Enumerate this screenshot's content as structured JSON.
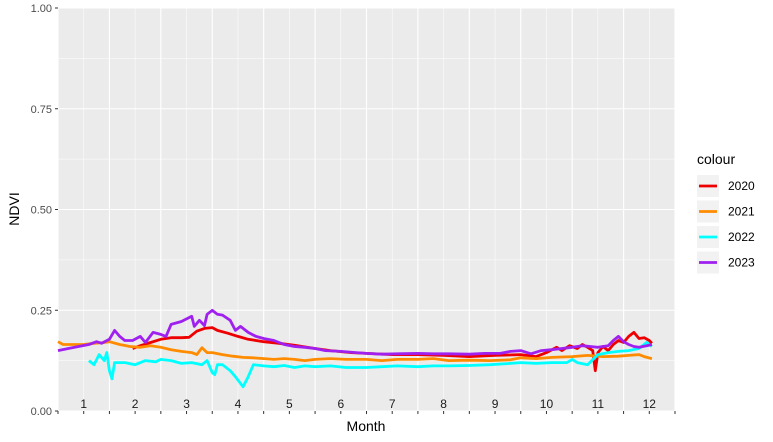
{
  "chart_data": {
    "type": "line",
    "title": "",
    "xlabel": "Month",
    "ylabel": "NDVI",
    "ylim": [
      0,
      1
    ],
    "y_ticks": [
      "0.00",
      "0.25",
      "0.50",
      "0.75",
      "1.00"
    ],
    "y_tick_values": [
      0,
      0.25,
      0.5,
      0.75,
      1.0
    ],
    "xlim": [
      1,
      13
    ],
    "month_labels": [
      "1",
      "2",
      "3",
      "4",
      "5",
      "6",
      "7",
      "8",
      "9",
      "10",
      "11",
      "12"
    ],
    "grid": true,
    "legend": {
      "title": "colour",
      "placement": "right"
    },
    "series": [
      {
        "name": "2020",
        "color": "#EE0000",
        "points": [
          [
            2.45,
            0.155
          ],
          [
            2.6,
            0.162
          ],
          [
            2.8,
            0.17
          ],
          [
            3.0,
            0.178
          ],
          [
            3.2,
            0.182
          ],
          [
            3.4,
            0.182
          ],
          [
            3.55,
            0.183
          ],
          [
            3.7,
            0.198
          ],
          [
            3.85,
            0.205
          ],
          [
            4.0,
            0.207
          ],
          [
            4.1,
            0.2
          ],
          [
            4.3,
            0.193
          ],
          [
            4.5,
            0.185
          ],
          [
            4.7,
            0.178
          ],
          [
            5.0,
            0.172
          ],
          [
            5.3,
            0.168
          ],
          [
            5.6,
            0.163
          ],
          [
            6.0,
            0.155
          ],
          [
            6.3,
            0.15
          ],
          [
            6.7,
            0.145
          ],
          [
            7.0,
            0.143
          ],
          [
            7.5,
            0.14
          ],
          [
            8.0,
            0.14
          ],
          [
            8.5,
            0.138
          ],
          [
            9.0,
            0.135
          ],
          [
            9.5,
            0.138
          ],
          [
            10.0,
            0.14
          ],
          [
            10.3,
            0.135
          ],
          [
            10.5,
            0.145
          ],
          [
            10.7,
            0.158
          ],
          [
            10.8,
            0.15
          ],
          [
            10.95,
            0.162
          ],
          [
            11.1,
            0.155
          ],
          [
            11.2,
            0.165
          ],
          [
            11.3,
            0.158
          ],
          [
            11.4,
            0.15
          ],
          [
            11.45,
            0.1
          ],
          [
            11.5,
            0.145
          ],
          [
            11.6,
            0.16
          ],
          [
            11.7,
            0.15
          ],
          [
            11.8,
            0.165
          ],
          [
            11.9,
            0.175
          ],
          [
            12.0,
            0.17
          ],
          [
            12.1,
            0.185
          ],
          [
            12.2,
            0.195
          ],
          [
            12.3,
            0.18
          ],
          [
            12.4,
            0.182
          ],
          [
            12.5,
            0.175
          ],
          [
            12.55,
            0.168
          ]
        ]
      },
      {
        "name": "2021",
        "color": "#FF8C00",
        "points": [
          [
            1.0,
            0.172
          ],
          [
            1.1,
            0.165
          ],
          [
            1.3,
            0.165
          ],
          [
            1.5,
            0.165
          ],
          [
            1.7,
            0.168
          ],
          [
            1.9,
            0.17
          ],
          [
            2.0,
            0.172
          ],
          [
            2.2,
            0.165
          ],
          [
            2.4,
            0.16
          ],
          [
            2.6,
            0.158
          ],
          [
            2.8,
            0.162
          ],
          [
            3.0,
            0.158
          ],
          [
            3.2,
            0.152
          ],
          [
            3.4,
            0.148
          ],
          [
            3.6,
            0.145
          ],
          [
            3.7,
            0.14
          ],
          [
            3.8,
            0.157
          ],
          [
            3.9,
            0.145
          ],
          [
            4.0,
            0.145
          ],
          [
            4.2,
            0.14
          ],
          [
            4.4,
            0.136
          ],
          [
            4.6,
            0.133
          ],
          [
            4.8,
            0.132
          ],
          [
            5.0,
            0.13
          ],
          [
            5.2,
            0.128
          ],
          [
            5.4,
            0.13
          ],
          [
            5.6,
            0.128
          ],
          [
            5.8,
            0.125
          ],
          [
            6.0,
            0.128
          ],
          [
            6.3,
            0.13
          ],
          [
            6.6,
            0.128
          ],
          [
            7.0,
            0.128
          ],
          [
            7.3,
            0.125
          ],
          [
            7.6,
            0.128
          ],
          [
            8.0,
            0.128
          ],
          [
            8.3,
            0.13
          ],
          [
            8.6,
            0.125
          ],
          [
            9.0,
            0.126
          ],
          [
            9.4,
            0.125
          ],
          [
            9.8,
            0.127
          ],
          [
            10.0,
            0.132
          ],
          [
            10.3,
            0.13
          ],
          [
            10.6,
            0.133
          ],
          [
            11.0,
            0.135
          ],
          [
            11.3,
            0.138
          ],
          [
            11.6,
            0.135
          ],
          [
            11.9,
            0.136
          ],
          [
            12.1,
            0.138
          ],
          [
            12.3,
            0.14
          ],
          [
            12.4,
            0.135
          ],
          [
            12.55,
            0.13
          ]
        ]
      },
      {
        "name": "2022",
        "color": "#00FFFF",
        "points": [
          [
            1.6,
            0.125
          ],
          [
            1.7,
            0.115
          ],
          [
            1.8,
            0.14
          ],
          [
            1.9,
            0.125
          ],
          [
            1.95,
            0.145
          ],
          [
            2.0,
            0.1
          ],
          [
            2.05,
            0.08
          ],
          [
            2.1,
            0.12
          ],
          [
            2.3,
            0.12
          ],
          [
            2.5,
            0.115
          ],
          [
            2.7,
            0.125
          ],
          [
            2.9,
            0.122
          ],
          [
            3.0,
            0.128
          ],
          [
            3.2,
            0.125
          ],
          [
            3.4,
            0.118
          ],
          [
            3.6,
            0.12
          ],
          [
            3.8,
            0.115
          ],
          [
            3.9,
            0.125
          ],
          [
            4.0,
            0.095
          ],
          [
            4.05,
            0.09
          ],
          [
            4.1,
            0.115
          ],
          [
            4.2,
            0.115
          ],
          [
            4.35,
            0.1
          ],
          [
            4.45,
            0.085
          ],
          [
            4.6,
            0.06
          ],
          [
            4.7,
            0.085
          ],
          [
            4.8,
            0.115
          ],
          [
            5.0,
            0.112
          ],
          [
            5.2,
            0.11
          ],
          [
            5.4,
            0.113
          ],
          [
            5.6,
            0.108
          ],
          [
            5.8,
            0.112
          ],
          [
            6.0,
            0.11
          ],
          [
            6.3,
            0.112
          ],
          [
            6.6,
            0.108
          ],
          [
            7.0,
            0.108
          ],
          [
            7.3,
            0.11
          ],
          [
            7.6,
            0.112
          ],
          [
            8.0,
            0.11
          ],
          [
            8.3,
            0.112
          ],
          [
            8.6,
            0.112
          ],
          [
            9.0,
            0.113
          ],
          [
            9.4,
            0.115
          ],
          [
            9.8,
            0.118
          ],
          [
            10.0,
            0.12
          ],
          [
            10.3,
            0.118
          ],
          [
            10.6,
            0.12
          ],
          [
            10.9,
            0.12
          ],
          [
            11.0,
            0.128
          ],
          [
            11.1,
            0.12
          ],
          [
            11.3,
            0.115
          ],
          [
            11.5,
            0.14
          ],
          [
            11.7,
            0.145
          ],
          [
            11.9,
            0.148
          ],
          [
            12.1,
            0.15
          ],
          [
            12.3,
            0.155
          ],
          [
            12.45,
            0.17
          ],
          [
            12.55,
            0.16
          ]
        ]
      },
      {
        "name": "2023",
        "color": "#A020F0",
        "points": [
          [
            1.0,
            0.15
          ],
          [
            1.2,
            0.155
          ],
          [
            1.4,
            0.16
          ],
          [
            1.6,
            0.165
          ],
          [
            1.75,
            0.172
          ],
          [
            1.85,
            0.168
          ],
          [
            2.0,
            0.178
          ],
          [
            2.1,
            0.2
          ],
          [
            2.2,
            0.185
          ],
          [
            2.3,
            0.175
          ],
          [
            2.45,
            0.175
          ],
          [
            2.6,
            0.185
          ],
          [
            2.7,
            0.17
          ],
          [
            2.85,
            0.195
          ],
          [
            3.0,
            0.19
          ],
          [
            3.1,
            0.185
          ],
          [
            3.2,
            0.215
          ],
          [
            3.4,
            0.222
          ],
          [
            3.6,
            0.235
          ],
          [
            3.65,
            0.21
          ],
          [
            3.75,
            0.225
          ],
          [
            3.85,
            0.212
          ],
          [
            3.9,
            0.24
          ],
          [
            4.0,
            0.25
          ],
          [
            4.1,
            0.24
          ],
          [
            4.2,
            0.238
          ],
          [
            4.35,
            0.225
          ],
          [
            4.45,
            0.2
          ],
          [
            4.55,
            0.21
          ],
          [
            4.7,
            0.195
          ],
          [
            4.85,
            0.185
          ],
          [
            5.0,
            0.18
          ],
          [
            5.2,
            0.175
          ],
          [
            5.4,
            0.165
          ],
          [
            5.6,
            0.16
          ],
          [
            5.8,
            0.158
          ],
          [
            6.0,
            0.155
          ],
          [
            6.2,
            0.15
          ],
          [
            6.5,
            0.148
          ],
          [
            6.8,
            0.145
          ],
          [
            7.0,
            0.143
          ],
          [
            7.3,
            0.141
          ],
          [
            7.6,
            0.142
          ],
          [
            8.0,
            0.143
          ],
          [
            8.3,
            0.142
          ],
          [
            8.6,
            0.142
          ],
          [
            9.0,
            0.141
          ],
          [
            9.3,
            0.143
          ],
          [
            9.6,
            0.143
          ],
          [
            9.8,
            0.148
          ],
          [
            10.0,
            0.15
          ],
          [
            10.2,
            0.142
          ],
          [
            10.4,
            0.15
          ],
          [
            10.6,
            0.152
          ],
          [
            10.8,
            0.155
          ],
          [
            11.0,
            0.158
          ],
          [
            11.2,
            0.162
          ],
          [
            11.35,
            0.16
          ],
          [
            11.5,
            0.158
          ],
          [
            11.7,
            0.162
          ],
          [
            11.8,
            0.175
          ],
          [
            11.9,
            0.185
          ],
          [
            12.0,
            0.172
          ],
          [
            12.1,
            0.165
          ],
          [
            12.2,
            0.16
          ],
          [
            12.3,
            0.158
          ],
          [
            12.45,
            0.162
          ],
          [
            12.55,
            0.165
          ]
        ]
      }
    ]
  }
}
